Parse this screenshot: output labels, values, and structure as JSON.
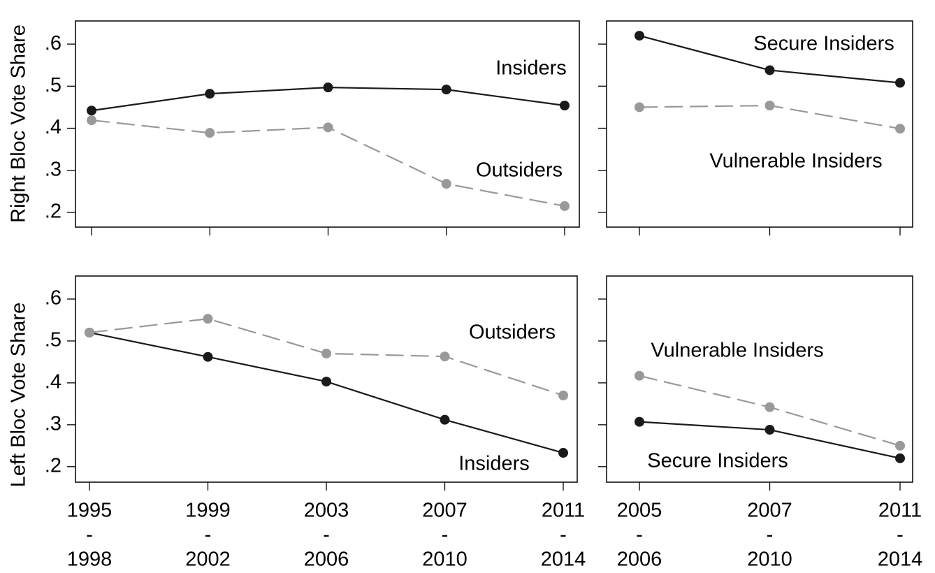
{
  "chart_data": [
    {
      "type": "line",
      "y_label": "Right Bloc Vote Share",
      "categories": [
        null,
        null,
        null,
        null,
        null
      ],
      "ylim": [
        0.165,
        0.655
      ],
      "yticks": [
        {
          "value": 0.2,
          "label": ".2"
        },
        {
          "value": 0.3,
          "label": ".3"
        },
        {
          "value": 0.4,
          "label": ".4"
        },
        {
          "value": 0.5,
          "label": ".5"
        },
        {
          "value": 0.6,
          "label": ".6"
        }
      ],
      "series": [
        {
          "name": "Insiders",
          "color": "#1a1a1a",
          "line_style": "solid",
          "values": [
            0.442,
            0.482,
            0.497,
            0.492,
            0.454
          ]
        },
        {
          "name": "Outsiders",
          "color": "#999999",
          "line_style": "dashed",
          "values": [
            0.419,
            0.389,
            0.402,
            0.268,
            0.215
          ]
        }
      ]
    },
    {
      "type": "line",
      "categories": [
        null,
        null,
        null
      ],
      "ylim": [
        0.165,
        0.655
      ],
      "yticks": [
        0.2,
        0.3,
        0.4,
        0.5,
        0.6
      ],
      "series": [
        {
          "name": "Secure Insiders",
          "color": "#1a1a1a",
          "line_style": "solid",
          "values": [
            0.62,
            0.538,
            0.508
          ]
        },
        {
          "name": "Vulnerable Insiders",
          "color": "#999999",
          "line_style": "dashed",
          "values": [
            0.45,
            0.454,
            0.399
          ]
        }
      ]
    },
    {
      "type": "line",
      "y_label": "Left Bloc Vote Share",
      "categories": [
        [
          "1995",
          "-",
          "1998"
        ],
        [
          "1999",
          "-",
          "2002"
        ],
        [
          "2003",
          "-",
          "2006"
        ],
        [
          "2007",
          "-",
          "2010"
        ],
        [
          "2011",
          "-",
          "2014"
        ]
      ],
      "ylim": [
        0.163,
        0.655
      ],
      "yticks": [
        {
          "value": 0.2,
          "label": ".2"
        },
        {
          "value": 0.3,
          "label": ".3"
        },
        {
          "value": 0.4,
          "label": ".4"
        },
        {
          "value": 0.5,
          "label": ".5"
        },
        {
          "value": 0.6,
          "label": ".6"
        }
      ],
      "series": [
        {
          "name": "Insiders",
          "color": "#1a1a1a",
          "line_style": "solid",
          "values": [
            0.52,
            0.462,
            0.403,
            0.312,
            0.233
          ]
        },
        {
          "name": "Outsiders",
          "color": "#999999",
          "line_style": "dashed",
          "values": [
            0.52,
            0.553,
            0.47,
            0.463,
            0.37
          ]
        }
      ]
    },
    {
      "type": "line",
      "categories": [
        [
          "2005",
          "-",
          "2006"
        ],
        [
          "2007",
          "-",
          "2010"
        ],
        [
          "2011",
          "-",
          "2014"
        ]
      ],
      "ylim": [
        0.163,
        0.655
      ],
      "yticks": [
        0.2,
        0.3,
        0.4,
        0.5,
        0.6
      ],
      "series": [
        {
          "name": "Secure Insiders",
          "color": "#1a1a1a",
          "line_style": "solid",
          "values": [
            0.307,
            0.288,
            0.22
          ]
        },
        {
          "name": "Vulnerable Insiders",
          "color": "#999999",
          "line_style": "dashed",
          "values": [
            0.417,
            0.342,
            0.25
          ]
        }
      ]
    }
  ]
}
